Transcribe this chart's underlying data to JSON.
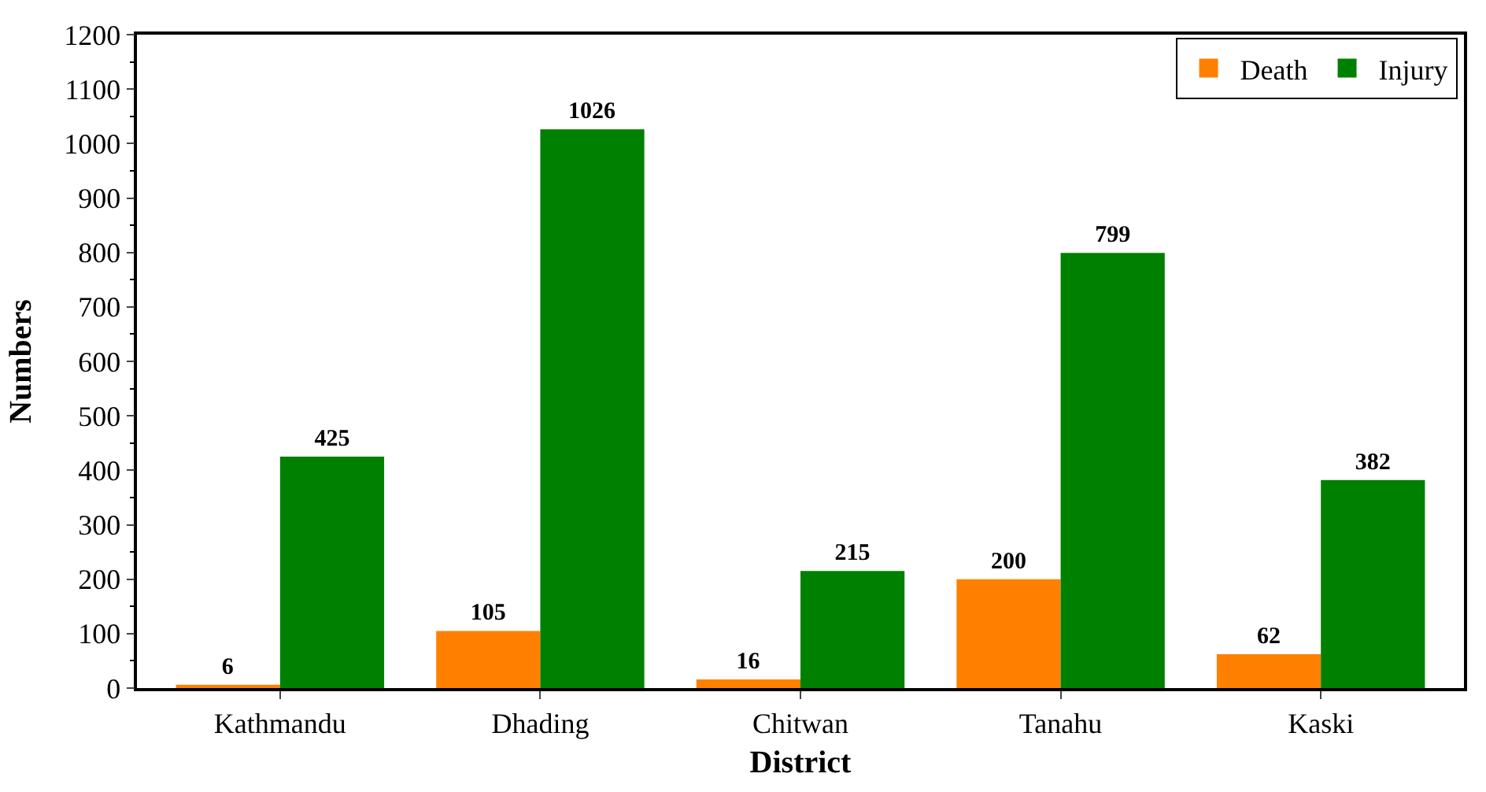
{
  "chart_data": {
    "type": "bar",
    "xlabel": "District",
    "ylabel": "Numbers",
    "categories": [
      "Kathmandu",
      "Dhading",
      "Chitwan",
      "Tanahu",
      "Kaski"
    ],
    "series": [
      {
        "name": "Death",
        "color": "#ff8000",
        "values": [
          6,
          105,
          16,
          200,
          62
        ]
      },
      {
        "name": "Injury",
        "color": "#008000",
        "values": [
          425,
          1026,
          215,
          799,
          382
        ]
      }
    ],
    "ylim": [
      0,
      1200
    ],
    "yticks": [
      0,
      100,
      200,
      300,
      400,
      500,
      600,
      700,
      800,
      900,
      1000,
      1100,
      1200
    ],
    "data_labels": true,
    "legend": "top right"
  }
}
